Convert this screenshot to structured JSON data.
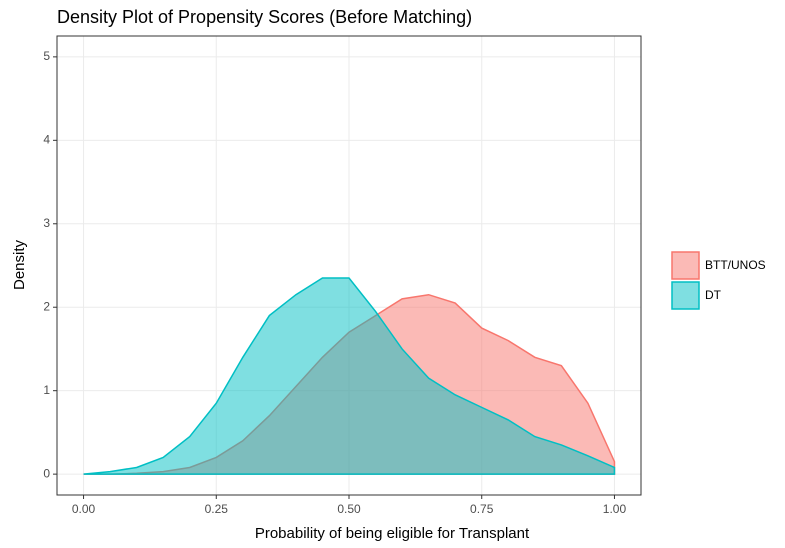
{
  "chart_data": {
    "type": "area",
    "title": "Density Plot of Propensity Scores (Before Matching)",
    "x_label": "Probability of being eligible for Transplant",
    "y_label": "Density",
    "x": [
      0,
      0.05,
      0.1,
      0.15,
      0.2,
      0.25,
      0.3,
      0.35,
      0.4,
      0.45,
      0.5,
      0.55,
      0.6,
      0.65,
      0.7,
      0.75,
      0.8,
      0.85,
      0.9,
      0.95,
      1.0
    ],
    "series": [
      {
        "name": "BTT/UNOS",
        "color": "#F8766D",
        "values": [
          0,
          0,
          0.01,
          0.03,
          0.08,
          0.2,
          0.4,
          0.7,
          1.05,
          1.4,
          1.7,
          1.9,
          2.1,
          2.15,
          2.05,
          1.75,
          1.6,
          1.4,
          1.3,
          0.85,
          0.15
        ]
      },
      {
        "name": "DT",
        "color": "#00BFC4",
        "values": [
          0,
          0.03,
          0.08,
          0.2,
          0.45,
          0.85,
          1.4,
          1.9,
          2.15,
          2.35,
          2.35,
          1.95,
          1.5,
          1.15,
          0.95,
          0.8,
          0.65,
          0.45,
          0.35,
          0.22,
          0.08
        ]
      }
    ],
    "xlim": [
      -0.05,
      1.05
    ],
    "ylim": [
      -0.25,
      5.25
    ],
    "xticks": [
      {
        "value": 0,
        "label": "0.00"
      },
      {
        "value": 0.25,
        "label": "0.25"
      },
      {
        "value": 0.5,
        "label": "0.50"
      },
      {
        "value": 0.75,
        "label": "0.75"
      },
      {
        "value": 1,
        "label": "1.00"
      }
    ],
    "yticks": [
      0,
      1,
      2,
      3,
      4,
      5
    ],
    "grid": true,
    "legend": "right"
  }
}
